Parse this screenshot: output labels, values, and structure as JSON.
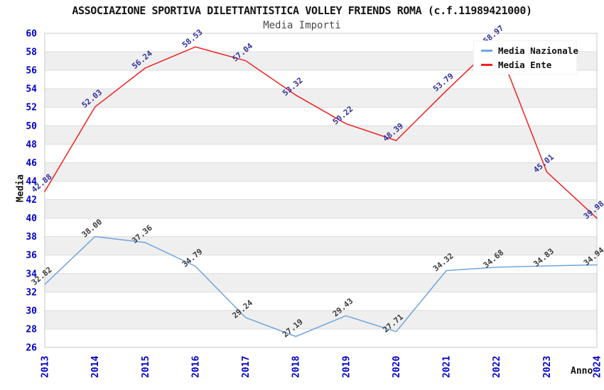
{
  "chart_data": {
    "type": "line",
    "title": "ASSOCIAZIONE SPORTIVA DILETTANTISTICA VOLLEY FRIENDS ROMA (c.f.11989421000)",
    "subtitle": "Media Importi",
    "xlabel": "Anno",
    "ylabel": "Media",
    "ylim": [
      26,
      60
    ],
    "ytick_step": 2,
    "grid": "horizontal-bands",
    "legend_position": "top-right",
    "categories": [
      "2013",
      "2014",
      "2015",
      "2016",
      "2017",
      "2018",
      "2019",
      "2020",
      "2021",
      "2022",
      "2023",
      "2024"
    ],
    "series": [
      {
        "name": "Media Nazionale",
        "color": "#6FA6DE",
        "label_color": "#3C3C3C",
        "values": [
          32.82,
          38.0,
          37.36,
          34.79,
          29.24,
          27.19,
          29.43,
          27.71,
          34.32,
          34.68,
          34.83,
          34.94
        ]
      },
      {
        "name": "Media Ente",
        "color": "#EE2222",
        "label_color": "#32329B",
        "values": [
          42.88,
          52.03,
          56.24,
          58.53,
          57.04,
          53.32,
          50.22,
          48.39,
          53.79,
          58.97,
          45.01,
          39.98
        ]
      }
    ],
    "style": {
      "band_color": "#EFEFEF",
      "grid_color": "#DCDCDC",
      "border_color": "#C8C8C8",
      "tick_color": "#0000CC",
      "background": "#FFFFFF"
    }
  }
}
